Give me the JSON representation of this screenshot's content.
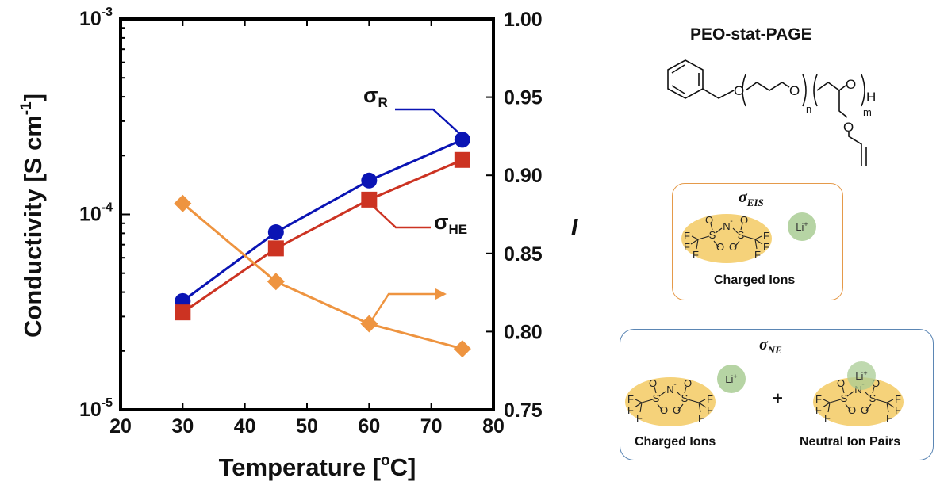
{
  "chart_data": {
    "type": "line",
    "title": "",
    "xlabel": "Temperature [°C]",
    "xlabel_main": "Temperature [",
    "xlabel_sup": "o",
    "xlabel_end": "C]",
    "ylabel": "Conductivity [S cm⁻¹]",
    "ylabel_main": "Conductivity [S cm",
    "ylabel_sup": "-1",
    "ylabel_end": "]",
    "y2label": "I",
    "xlim": [
      20,
      80
    ],
    "ylim": [
      1e-05,
      0.001
    ],
    "yscale": "log",
    "y2lim": [
      0.75,
      1.0
    ],
    "grid": false,
    "x_ticks": [
      "20",
      "30",
      "40",
      "50",
      "60",
      "70",
      "80"
    ],
    "y_ticks": [
      {
        "base": "10",
        "exp": "-3"
      },
      {
        "base": "10",
        "exp": "-4"
      },
      {
        "base": "10",
        "exp": "-5"
      }
    ],
    "y2_ticks": [
      "1.00",
      "0.95",
      "0.90",
      "0.85",
      "0.80",
      "0.75"
    ],
    "x": [
      30,
      45,
      60,
      75
    ],
    "series": [
      {
        "name": "sigma_R",
        "label_main": "σ",
        "label_sub": "R",
        "axis": "left",
        "marker": "circle",
        "color": "#0a14b4",
        "values": [
          3.6e-05,
          8.1e-05,
          0.000149,
          0.000241
        ]
      },
      {
        "name": "sigma_HE",
        "label_main": "σ",
        "label_sub": "HE",
        "axis": "left",
        "marker": "square",
        "color": "#cc3322",
        "values": [
          3.15e-05,
          6.7e-05,
          0.000119,
          0.00019
        ]
      },
      {
        "name": "I",
        "label_main": "",
        "label_sub": "",
        "axis": "right",
        "marker": "diamond",
        "color": "#ee9440",
        "values": [
          0.882,
          0.832,
          0.805,
          0.789
        ]
      }
    ],
    "annotations": [
      {
        "text": "σ_R",
        "points_to": "sigma_R at 75°C"
      },
      {
        "text": "σ_HE",
        "points_to": "sigma_HE at 60°C"
      },
      {
        "text": "arrow → right axis",
        "points_to": "I at 60°C"
      }
    ]
  },
  "structure": {
    "title": "PEO-stat-PAGE",
    "atoms": {
      "O": "O",
      "H": "H",
      "n": "n",
      "m": "m"
    }
  },
  "eis_panel": {
    "title_main": "σ",
    "title_sub": "EIS",
    "caption": "Charged Ions",
    "li": "Li",
    "li_charge": "+"
  },
  "ne_panel": {
    "title_main": "σ",
    "title_sub": "NE",
    "plus": "+",
    "caption_left": "Charged Ions",
    "caption_right": "Neutral Ion Pairs",
    "li": "Li",
    "li_charge": "+"
  },
  "tfsi": {
    "F": "F",
    "S": "S",
    "O": "O",
    "N": "N",
    "minus": "-"
  },
  "colors": {
    "sigma_R": "#0a14b4",
    "sigma_HE": "#cc3322",
    "I": "#ee9440",
    "anion_fill": "#f5d27a",
    "li_fill": "#a9cc94",
    "eis_border": "#e59a4a",
    "ne_border": "#5b86b4"
  }
}
